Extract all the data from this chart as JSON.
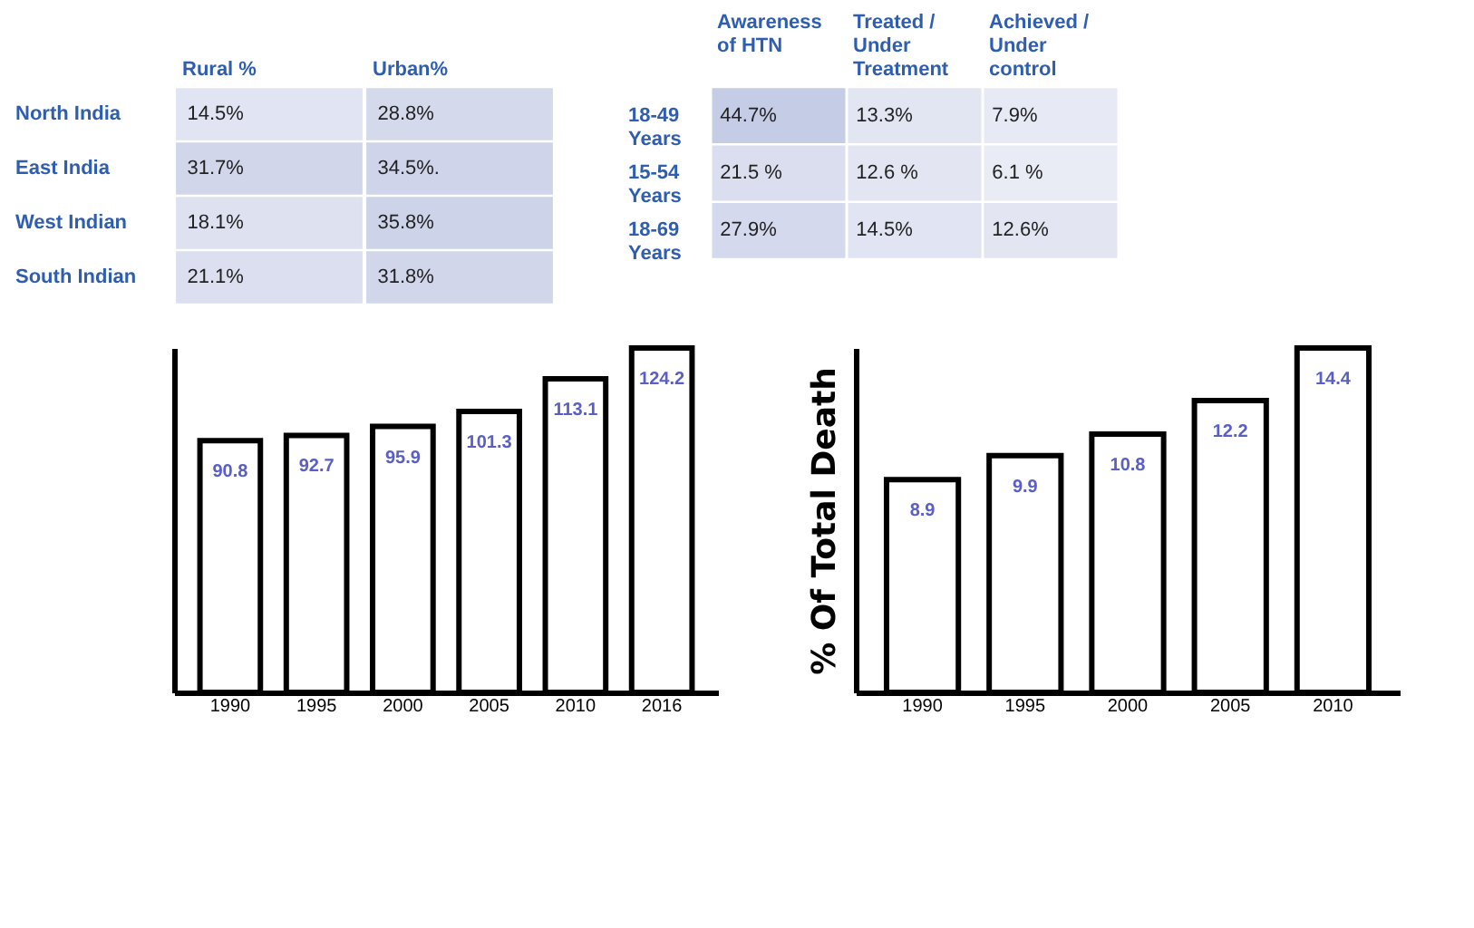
{
  "chart_data": [
    {
      "type": "heatmap",
      "categories": [
        "Rural %",
        "Urban%"
      ],
      "y_categories": [
        "North India",
        "East India",
        "West Indian",
        "South Indian"
      ],
      "cells": [
        [
          14.5,
          28.8
        ],
        [
          31.7,
          34.5
        ],
        [
          18.1,
          35.8
        ],
        [
          21.1,
          31.8
        ]
      ],
      "cell_labels": [
        [
          "14.5%",
          "28.8%"
        ],
        [
          "31.7%",
          "34.5%."
        ],
        [
          "18.1%",
          "35.8%"
        ],
        [
          "21.1%",
          "31.8%"
        ]
      ]
    },
    {
      "type": "heatmap",
      "categories": [
        "Awareness of HTN",
        "Treated / Under Treatment",
        "Achieved / Under control"
      ],
      "y_categories": [
        "18-49 Years",
        "15-54 Years",
        "18-69 Years"
      ],
      "cells": [
        [
          44.7,
          13.3,
          7.9
        ],
        [
          21.5,
          12.6,
          6.1
        ],
        [
          27.9,
          14.5,
          12.6
        ]
      ],
      "cell_labels": [
        [
          "44.7%",
          "13.3%",
          "7.9%"
        ],
        [
          "21.5 %",
          "12.6 %",
          "6.1 %"
        ],
        [
          "27.9%",
          "14.5%",
          "12.6%"
        ]
      ]
    },
    {
      "type": "bar",
      "categories": [
        "1990",
        "1995",
        "2000",
        "2005",
        "2010",
        "2016"
      ],
      "values": [
        90.8,
        92.7,
        95.9,
        101.3,
        113.1,
        124.2
      ],
      "data_labels": true,
      "tick_labels": "x",
      "grid": false
    },
    {
      "type": "bar",
      "ylabel": "% Of Total Death",
      "categories": [
        "1990",
        "1995",
        "2000",
        "2005",
        "2010"
      ],
      "values": [
        8.9,
        9.9,
        10.8,
        12.2,
        14.4
      ],
      "data_labels": true,
      "tick_labels": "x",
      "grid": false
    }
  ]
}
